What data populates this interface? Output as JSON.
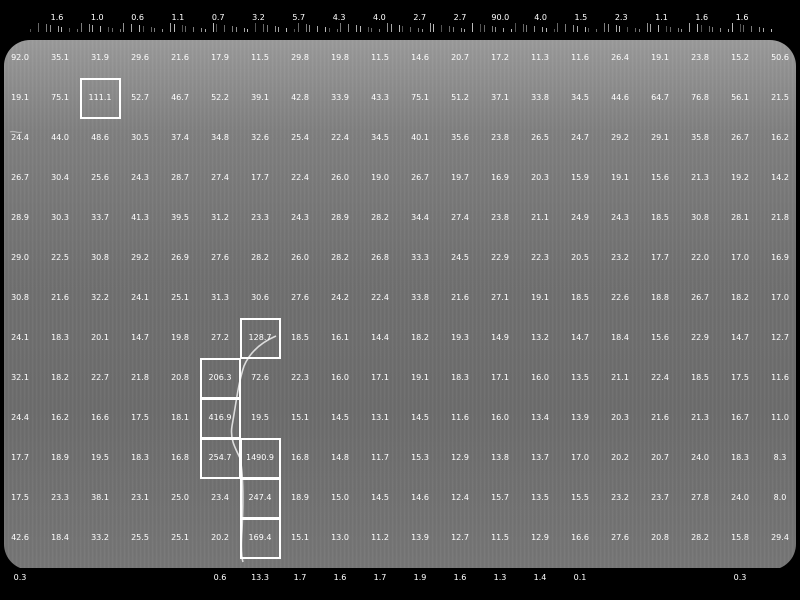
{
  "grid": {
    "top_row": [
      "1.6",
      "1.0",
      "0.6",
      "1.1",
      "0.7",
      "3.2",
      "5.7",
      "4.3",
      "4.0",
      "2.7",
      "2.7",
      "90.0",
      "4.0",
      "1.5",
      "2.3",
      "1.1",
      "1.6",
      "1.6"
    ],
    "rows": [
      [
        "92.0",
        "35.1",
        "31.9",
        "29.6",
        "21.6",
        "17.9",
        "11.5",
        "29.8",
        "19.8",
        "11.5",
        "14.6",
        "20.7",
        "17.2",
        "11.3",
        "11.6",
        "26.4",
        "19.1",
        "23.8",
        "15.2",
        "50.6"
      ],
      [
        "19.1",
        "75.1",
        "111.1",
        "52.7",
        "46.7",
        "52.2",
        "39.1",
        "42.8",
        "33.9",
        "43.3",
        "75.1",
        "51.2",
        "37.1",
        "33.8",
        "34.5",
        "44.6",
        "64.7",
        "76.8",
        "56.1",
        "21.5"
      ],
      [
        "24.4",
        "44.0",
        "48.6",
        "30.5",
        "37.4",
        "34.8",
        "32.6",
        "25.4",
        "22.4",
        "34.5",
        "40.1",
        "35.6",
        "23.8",
        "26.5",
        "24.7",
        "29.2",
        "29.1",
        "35.8",
        "26.7",
        "16.2"
      ],
      [
        "26.7",
        "30.4",
        "25.6",
        "24.3",
        "28.7",
        "27.4",
        "17.7",
        "22.4",
        "26.0",
        "19.0",
        "26.7",
        "19.7",
        "16.9",
        "20.3",
        "15.9",
        "19.1",
        "15.6",
        "21.3",
        "19.2",
        "14.2"
      ],
      [
        "28.9",
        "30.3",
        "33.7",
        "41.3",
        "39.5",
        "31.2",
        "23.3",
        "24.3",
        "28.9",
        "28.2",
        "34.4",
        "27.4",
        "23.8",
        "21.1",
        "24.9",
        "24.3",
        "18.5",
        "30.8",
        "28.1",
        "21.8"
      ],
      [
        "29.0",
        "22.5",
        "30.8",
        "29.2",
        "26.9",
        "27.6",
        "28.2",
        "26.0",
        "28.2",
        "26.8",
        "33.3",
        "24.5",
        "22.9",
        "22.3",
        "20.5",
        "23.2",
        "17.7",
        "22.0",
        "17.0",
        "16.9"
      ],
      [
        "30.8",
        "21.6",
        "32.2",
        "24.1",
        "25.1",
        "31.3",
        "30.6",
        "27.6",
        "24.2",
        "22.4",
        "33.8",
        "21.6",
        "27.1",
        "19.1",
        "18.5",
        "22.6",
        "18.8",
        "26.7",
        "18.2",
        "17.0"
      ],
      [
        "24.1",
        "18.3",
        "20.1",
        "14.7",
        "19.8",
        "27.2",
        "128.7",
        "18.5",
        "16.1",
        "14.4",
        "18.2",
        "19.3",
        "14.9",
        "13.2",
        "14.7",
        "18.4",
        "15.6",
        "22.9",
        "14.7",
        "12.7"
      ],
      [
        "32.1",
        "18.2",
        "22.7",
        "21.8",
        "20.8",
        "206.3",
        "72.6",
        "22.3",
        "16.0",
        "17.1",
        "19.1",
        "18.3",
        "17.1",
        "16.0",
        "13.5",
        "21.1",
        "22.4",
        "18.5",
        "17.5",
        "11.6"
      ],
      [
        "24.4",
        "16.2",
        "16.6",
        "17.5",
        "18.1",
        "416.9",
        "19.5",
        "15.1",
        "14.5",
        "13.1",
        "14.5",
        "11.6",
        "16.0",
        "13.4",
        "13.9",
        "20.3",
        "21.6",
        "21.3",
        "16.7",
        "11.0"
      ],
      [
        "17.7",
        "18.9",
        "19.5",
        "18.3",
        "16.8",
        "254.7",
        "1490.9",
        "16.8",
        "14.8",
        "11.7",
        "15.3",
        "12.9",
        "13.8",
        "13.7",
        "17.0",
        "20.2",
        "20.7",
        "24.0",
        "18.3",
        "8.3"
      ],
      [
        "17.5",
        "23.3",
        "38.1",
        "23.1",
        "25.0",
        "23.4",
        "247.4",
        "18.9",
        "15.0",
        "14.5",
        "14.6",
        "12.4",
        "15.7",
        "13.5",
        "15.5",
        "23.2",
        "23.7",
        "27.8",
        "24.0",
        "8.0"
      ],
      [
        "42.6",
        "18.4",
        "33.2",
        "25.5",
        "25.1",
        "20.2",
        "169.4",
        "15.1",
        "13.0",
        "11.2",
        "13.9",
        "12.7",
        "11.5",
        "12.9",
        "16.6",
        "27.6",
        "20.8",
        "28.2",
        "15.8",
        "29.4"
      ]
    ],
    "bottom_row": [
      "0.3",
      "",
      "",
      "",
      "",
      "0.6",
      "13.3",
      "1.7",
      "1.6",
      "1.7",
      "1.9",
      "1.6",
      "1.3",
      "1.4",
      "0.1",
      "",
      "",
      "",
      "0.3",
      ""
    ]
  },
  "highlights": [
    {
      "row": 1,
      "col": 2
    },
    {
      "row": 7,
      "col": 6
    },
    {
      "row": 8,
      "col": 5
    },
    {
      "row": 9,
      "col": 5
    },
    {
      "row": 10,
      "col": 5
    },
    {
      "row": 10,
      "col": 6
    },
    {
      "row": 11,
      "col": 6
    },
    {
      "row": 12,
      "col": 6
    }
  ]
}
